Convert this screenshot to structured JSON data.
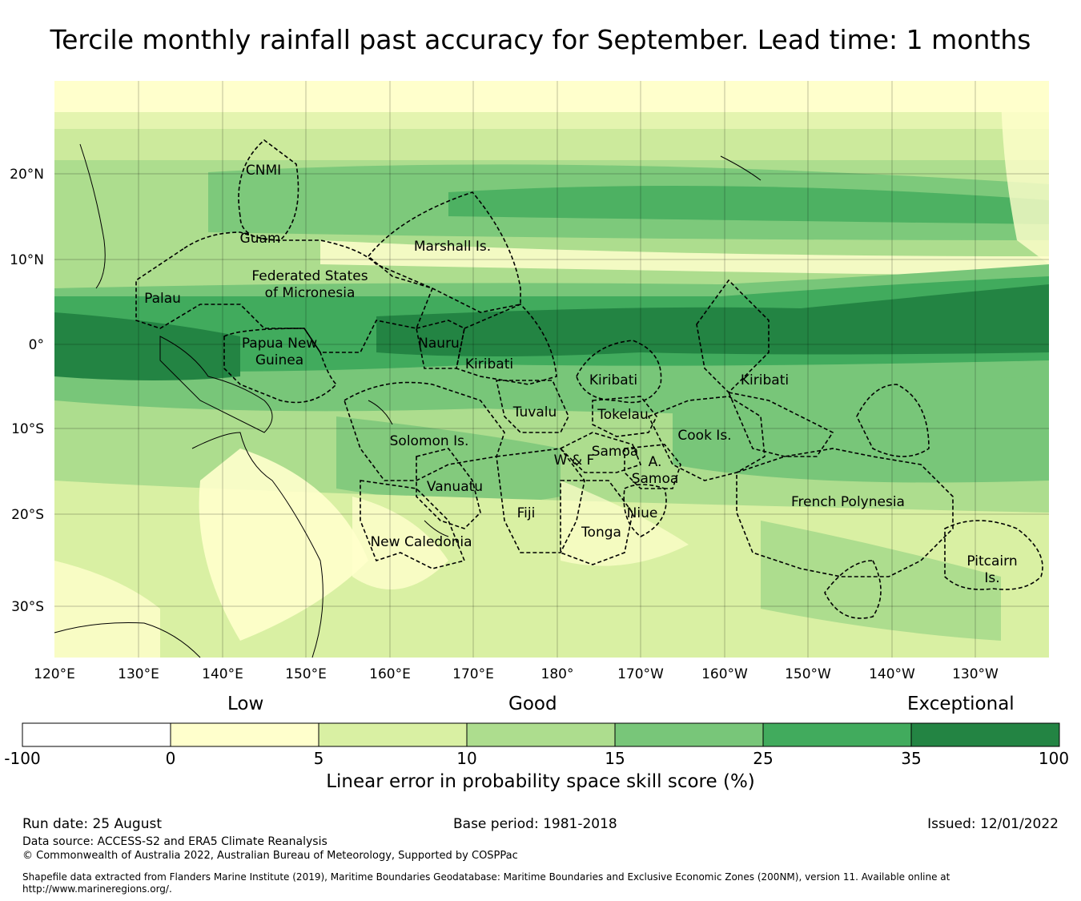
{
  "title": "Tercile monthly rainfall past accuracy for September. Lead time: 1 months",
  "map": {
    "lon_labels": [
      "120°E",
      "130°E",
      "140°E",
      "150°E",
      "160°E",
      "170°E",
      "180°",
      "170°W",
      "160°W",
      "150°W",
      "140°W",
      "130°W"
    ],
    "lat_labels": [
      "20°N",
      "10°N",
      "0°",
      "10°S",
      "20°S",
      "30°S"
    ],
    "regions": [
      "CNMI",
      "Guam",
      "Marshall Is.",
      "Federated States",
      "of Micronesia",
      "Palau",
      "Papua New",
      "Guinea",
      "Nauru",
      "Kiribati",
      "Kiribati",
      "Kiribati",
      "Tuvalu",
      "Tokelau",
      "Cook Is.",
      "Solomon Is.",
      "Samoa",
      "W & F",
      "A.",
      "Samoa",
      "Vanuatu",
      "Fiji",
      "Niue",
      "Tonga",
      "New Caledonia",
      "French Polynesia",
      "Pitcairn",
      "Is."
    ]
  },
  "colorbar": {
    "categories": {
      "low": "Low",
      "good": "Good",
      "exceptional": "Exceptional"
    },
    "ticks": [
      "-100",
      "0",
      "5",
      "10",
      "15",
      "25",
      "35",
      "100"
    ],
    "colors": [
      "#ffffff",
      "#ffffcc",
      "#d9f0a3",
      "#addd8e",
      "#78c679",
      "#41ab5d",
      "#238443"
    ],
    "label": "Linear error in probability space skill score (%)"
  },
  "footer": {
    "run_date": "Run date: 25 August",
    "base_period": "Base period: 1981-2018",
    "issued": "Issued: 12/01/2022",
    "data_source": "Data source: ACCESS-S2 and ERA5 Climate Reanalysis",
    "copyright": "© Commonwealth of Australia 2022, Australian Bureau of Meteorology, Supported by COSPPac",
    "shapefile": "Shapefile data extracted from Flanders Marine Institute (2019), Maritime Boundaries Geodatabase: Maritime Boundaries and Exclusive Economic Zones (200NM), version 11. Available online at http://www.marineregions.org/."
  }
}
